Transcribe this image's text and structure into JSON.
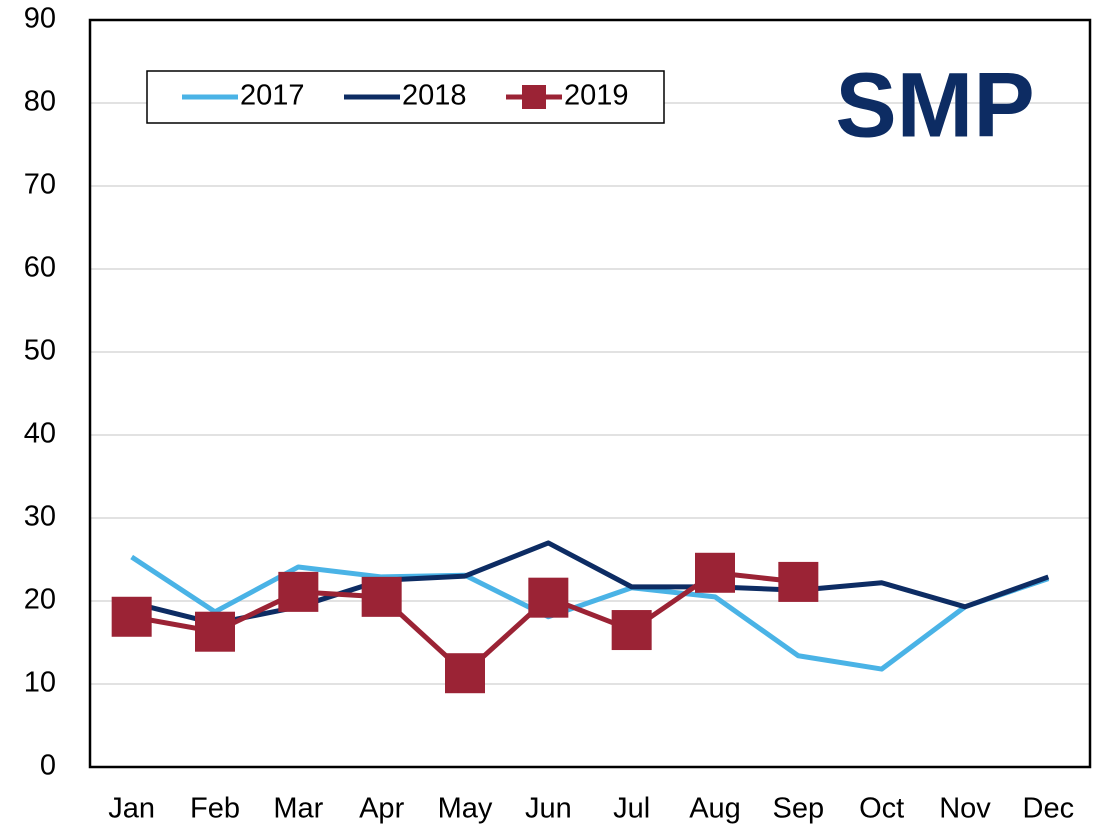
{
  "chart_data": {
    "type": "line",
    "annotation": "SMP",
    "categories": [
      "Jan",
      "Feb",
      "Mar",
      "Apr",
      "May",
      "Jun",
      "Jul",
      "Aug",
      "Sep",
      "Oct",
      "Nov",
      "Dec"
    ],
    "series": [
      {
        "name": "2017",
        "color": "#4ab3e6",
        "values": [
          25.3,
          18.7,
          24.1,
          22.9,
          23.1,
          18.1,
          21.6,
          20.5,
          13.4,
          11.8,
          19.3,
          22.7
        ]
      },
      {
        "name": "2018",
        "color": "#0d2c63",
        "values": [
          19.8,
          17.3,
          19.3,
          22.5,
          23.0,
          27.0,
          21.7,
          21.7,
          21.3,
          22.2,
          19.3,
          22.9
        ]
      },
      {
        "name": "2019",
        "color": "#9b2335",
        "marker": "square",
        "values": [
          18.1,
          16.3,
          21.1,
          20.5,
          11.3,
          20.4,
          16.5,
          23.4,
          22.3,
          null,
          null,
          null
        ]
      }
    ],
    "ylim": [
      0,
      90
    ],
    "yticks": [
      0,
      10,
      20,
      30,
      40,
      50,
      60,
      70,
      80,
      90
    ],
    "grid": true,
    "legend": "top-left"
  }
}
